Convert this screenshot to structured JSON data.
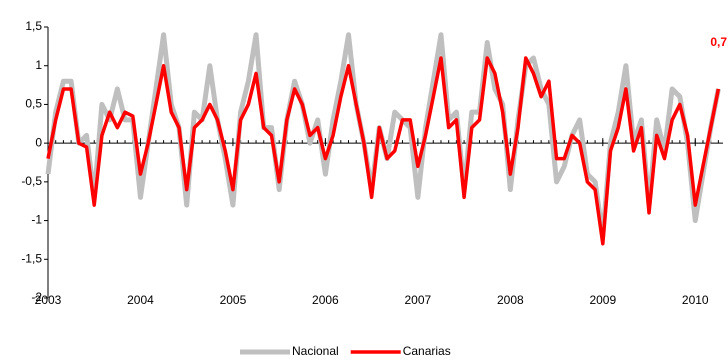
{
  "chart_data": {
    "type": "line",
    "x": [
      2003,
      2003.083,
      2003.167,
      2003.25,
      2003.333,
      2003.417,
      2003.5,
      2003.583,
      2003.667,
      2003.75,
      2003.833,
      2003.917,
      2004,
      2004.083,
      2004.167,
      2004.25,
      2004.333,
      2004.417,
      2004.5,
      2004.583,
      2004.667,
      2004.75,
      2004.833,
      2004.917,
      2005,
      2005.083,
      2005.167,
      2005.25,
      2005.333,
      2005.417,
      2005.5,
      2005.583,
      2005.667,
      2005.75,
      2005.833,
      2005.917,
      2006,
      2006.083,
      2006.167,
      2006.25,
      2006.333,
      2006.417,
      2006.5,
      2006.583,
      2006.667,
      2006.75,
      2006.833,
      2006.917,
      2007,
      2007.083,
      2007.167,
      2007.25,
      2007.333,
      2007.417,
      2007.5,
      2007.583,
      2007.667,
      2007.75,
      2007.833,
      2007.917,
      2008,
      2008.083,
      2008.167,
      2008.25,
      2008.333,
      2008.417,
      2008.5,
      2008.583,
      2008.667,
      2008.75,
      2008.833,
      2008.917,
      2009,
      2009.083,
      2009.167,
      2009.25,
      2009.333,
      2009.417,
      2009.5,
      2009.583,
      2009.667,
      2009.75,
      2009.833,
      2009.917,
      2010,
      2010.083,
      2010.167,
      2010.25
    ],
    "series": [
      {
        "name": "Nacional",
        "color": "#bfbfbf",
        "values": [
          -0.4,
          0.4,
          0.8,
          0.8,
          0,
          0.1,
          -0.7,
          0.5,
          0.3,
          0.7,
          0.3,
          0.3,
          -0.7,
          0,
          0.7,
          1.4,
          0.5,
          0.2,
          -0.8,
          0.4,
          0.3,
          1.0,
          0.3,
          -0.2,
          -0.8,
          0.4,
          0.8,
          1.4,
          0.2,
          0.2,
          -0.6,
          0.3,
          0.8,
          0.5,
          0,
          0.3,
          -0.4,
          0.3,
          0.8,
          1.4,
          0.5,
          0,
          -0.6,
          0.2,
          -0.2,
          0.4,
          0.3,
          0.2,
          -0.7,
          0.2,
          0.8,
          1.4,
          0.3,
          0.4,
          -0.6,
          0.4,
          0.4,
          1.3,
          0.7,
          0.5,
          -0.6,
          0.3,
          1.0,
          1.1,
          0.7,
          0.5,
          -0.5,
          -0.3,
          0.1,
          0.3,
          -0.4,
          -0.5,
          -1.2,
          0,
          0.4,
          1.0,
          0,
          0.3,
          -0.8,
          0.3,
          -0.1,
          0.7,
          0.6,
          0,
          -1.0,
          -0.4,
          0.2,
          0.7
        ]
      },
      {
        "name": "Canarias",
        "color": "#ff0000",
        "values": [
          -0.2,
          0.3,
          0.7,
          0.7,
          0,
          -0.05,
          -0.8,
          0.1,
          0.4,
          0.2,
          0.4,
          0.35,
          -0.4,
          0,
          0.5,
          1.0,
          0.4,
          0.2,
          -0.6,
          0.2,
          0.3,
          0.5,
          0.3,
          -0.1,
          -0.6,
          0.3,
          0.5,
          0.9,
          0.2,
          0.1,
          -0.5,
          0.3,
          0.7,
          0.5,
          0.1,
          0.2,
          -0.2,
          0.1,
          0.6,
          1.0,
          0.5,
          0,
          -0.7,
          0.2,
          -0.2,
          -0.1,
          0.3,
          0.3,
          -0.3,
          0.1,
          0.6,
          1.1,
          0.2,
          0.3,
          -0.7,
          0.2,
          0.3,
          1.1,
          0.9,
          0.4,
          -0.4,
          0.2,
          1.1,
          0.9,
          0.6,
          0.8,
          -0.2,
          -0.2,
          0.1,
          0,
          -0.5,
          -0.6,
          -1.3,
          -0.1,
          0.2,
          0.7,
          -0.1,
          0.2,
          -0.9,
          0.1,
          -0.2,
          0.3,
          0.5,
          0.1,
          -0.8,
          -0.3,
          0.2,
          0.7
        ]
      }
    ],
    "annotations": [
      {
        "text": "0,7"
      }
    ],
    "xlim": [
      2003,
      2010.3
    ],
    "xticks": [
      2003,
      2004,
      2005,
      2006,
      2007,
      2008,
      2009,
      2010
    ],
    "ylim": [
      -2,
      1.5
    ],
    "yticks": [
      {
        "value": -2,
        "label": "-2"
      },
      {
        "value": -1.5,
        "label": "-1,5"
      },
      -1,
      {
        "value": -0.5,
        "label": "-0,5"
      },
      0,
      {
        "value": 0.5,
        "label": "0,5"
      },
      1,
      {
        "value": 1.5,
        "label": "1,5"
      }
    ],
    "grid": false,
    "legend": "bottom"
  }
}
